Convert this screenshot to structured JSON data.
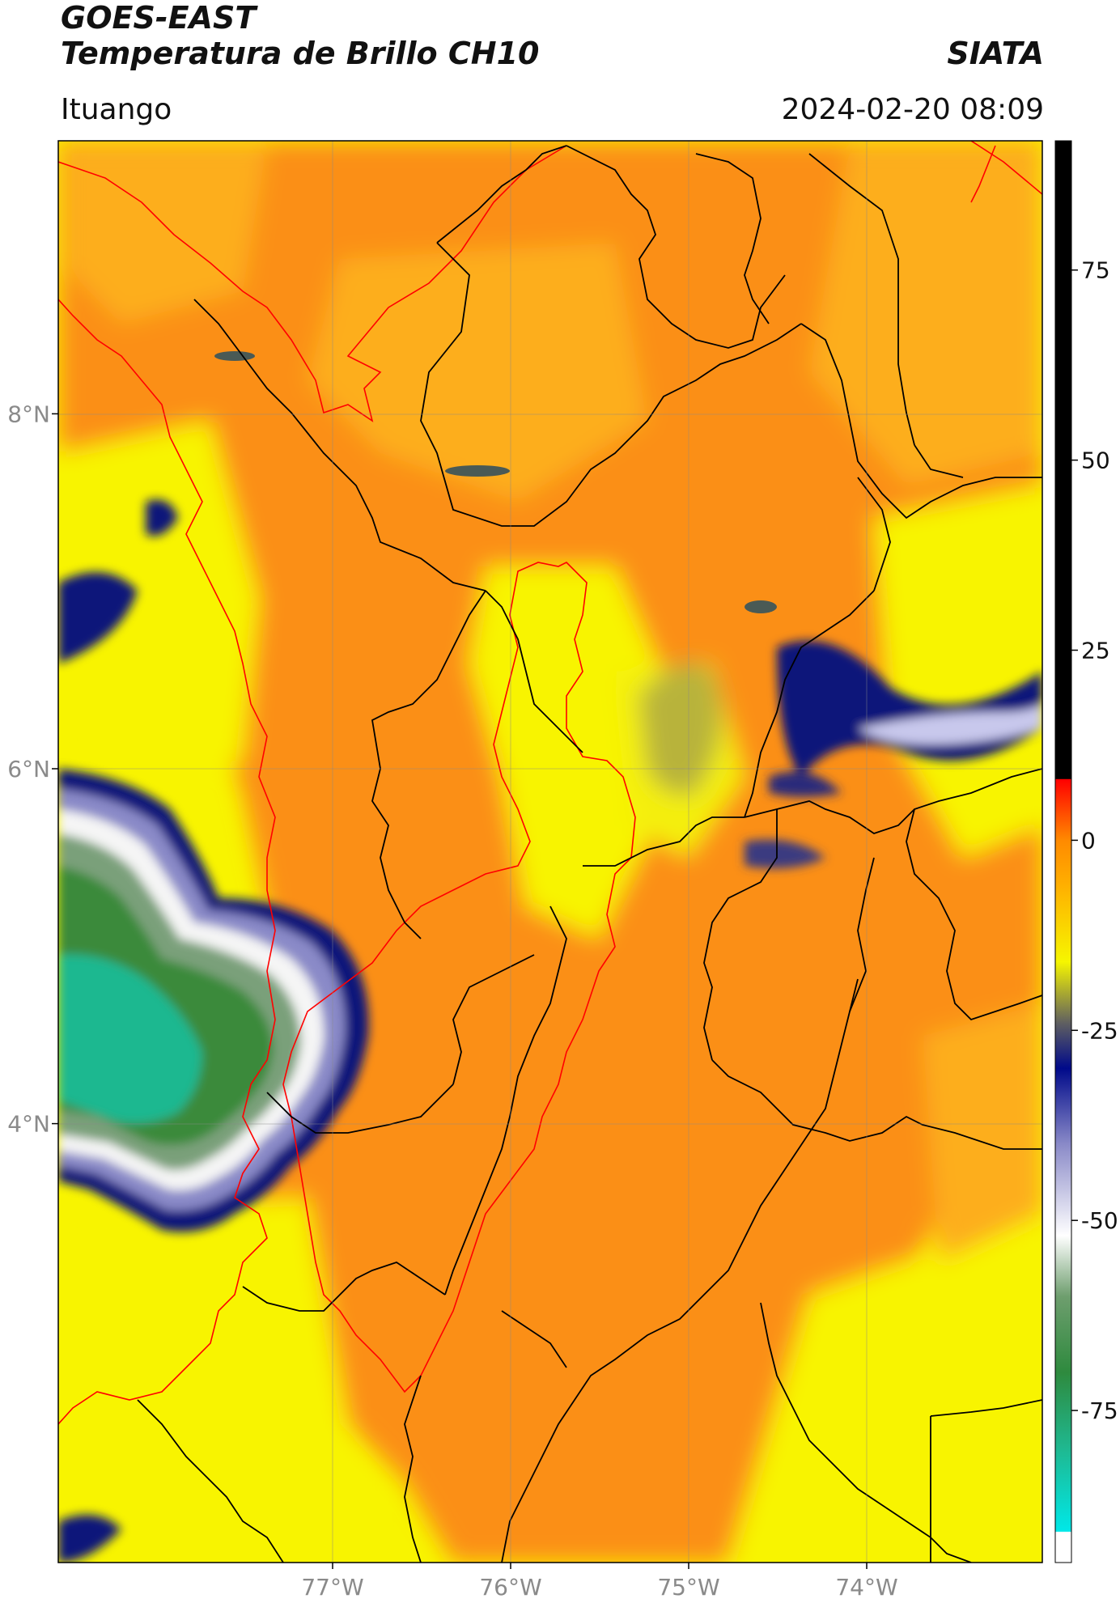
{
  "header": {
    "satellite": "GOES-EAST",
    "product": "Temperatura de Brillo CH10",
    "organization": "SIATA",
    "region": "Ituango",
    "timestamp": "2024-02-20 08:09"
  },
  "axes": {
    "lat_ticks": [
      {
        "value": 8,
        "label": "8°N"
      },
      {
        "value": 6,
        "label": "6°N"
      },
      {
        "value": 4,
        "label": "4°N"
      }
    ],
    "lon_ticks": [
      {
        "value": -77,
        "label": "77°W"
      },
      {
        "value": -76,
        "label": "76°W"
      },
      {
        "value": -75,
        "label": "75°W"
      },
      {
        "value": -74,
        "label": "74°W"
      }
    ]
  },
  "colorbar": {
    "ticks": [
      "75",
      "50",
      "25",
      "0",
      "-25",
      "-50",
      "-75"
    ],
    "tick_values": [
      75,
      50,
      25,
      0,
      -25,
      -50,
      -75
    ],
    "range": [
      -95,
      92
    ],
    "stops": [
      {
        "v": -95,
        "c": "#ffffff"
      },
      {
        "v": -91,
        "c": "#ffffff"
      },
      {
        "v": -90.9,
        "c": "#00e8e8"
      },
      {
        "v": -80,
        "c": "#1fb890"
      },
      {
        "v": -70,
        "c": "#2e8a3e"
      },
      {
        "v": -60,
        "c": "#6e9e6e"
      },
      {
        "v": -52,
        "c": "#ffffff"
      },
      {
        "v": -40,
        "c": "#8a8ac8"
      },
      {
        "v": -30,
        "c": "#000a8a"
      },
      {
        "v": -24,
        "c": "#606060"
      },
      {
        "v": -16,
        "c": "#f6f600"
      },
      {
        "v": -6,
        "c": "#ffb000"
      },
      {
        "v": 0,
        "c": "#ff8a00"
      },
      {
        "v": 8,
        "c": "#ff0000"
      },
      {
        "v": 8.1,
        "c": "#000000"
      },
      {
        "v": 92,
        "c": "#000000"
      }
    ]
  },
  "colors": {
    "orange": "#fb8f12",
    "light_orange": "#fdae1a",
    "yellow": "#f8f400",
    "olive": "#a6a340",
    "navy": "#10127a",
    "lavender": "#9a9ad4",
    "green": "#3b8a3a",
    "teal": "#1fb890",
    "admin_border": "#000000",
    "region_border": "#ff0000"
  }
}
